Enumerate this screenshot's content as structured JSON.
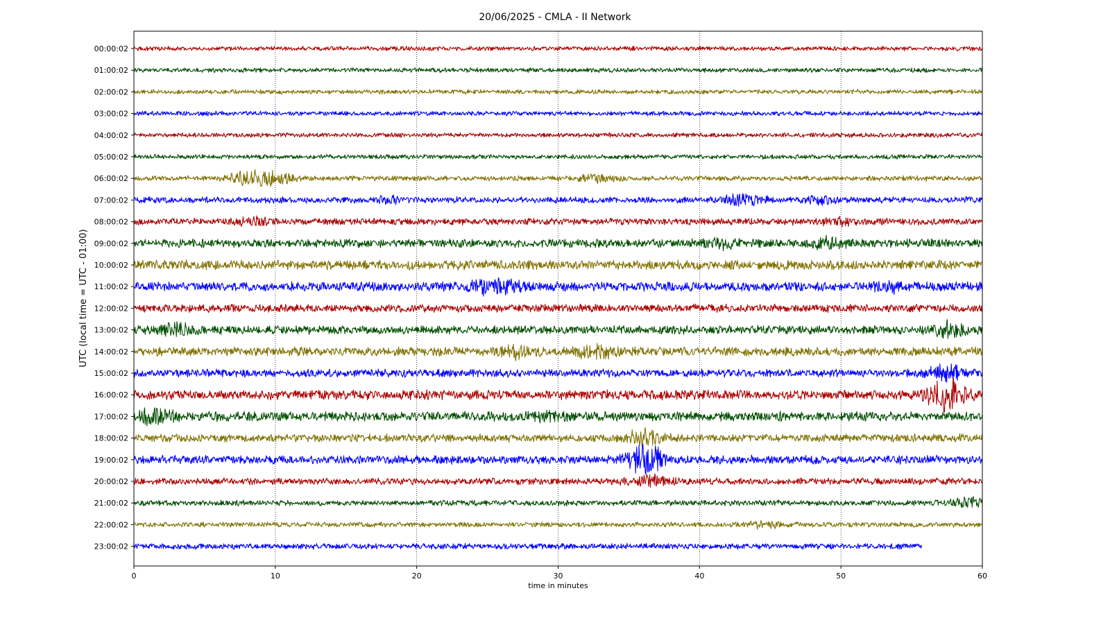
{
  "chart_data": {
    "type": "line",
    "title": "20/06/2025 - CMLA - II Network",
    "xlabel": "time in minutes",
    "ylabel": "UTC (local time = UTC - 01:00)",
    "xlim": [
      0,
      60
    ],
    "xticks": [
      "0",
      "10",
      "20",
      "30",
      "40",
      "50",
      "60"
    ],
    "grid": "vertical dotted lines at each x tick",
    "series_colors": [
      "#aa0000",
      "#004d00",
      "#807000",
      "#0000ff"
    ],
    "series": [
      {
        "name": "00:00:02",
        "color": "#aa0000",
        "end_minute": 60,
        "base_amplitude": 0.4,
        "events": []
      },
      {
        "name": "01:00:02",
        "color": "#004d00",
        "end_minute": 60,
        "base_amplitude": 0.4,
        "events": []
      },
      {
        "name": "02:00:02",
        "color": "#807000",
        "end_minute": 60,
        "base_amplitude": 0.4,
        "events": []
      },
      {
        "name": "03:00:02",
        "color": "#0000ff",
        "end_minute": 60,
        "base_amplitude": 0.4,
        "events": []
      },
      {
        "name": "04:00:02",
        "color": "#aa0000",
        "end_minute": 60,
        "base_amplitude": 0.4,
        "events": []
      },
      {
        "name": "05:00:02",
        "color": "#004d00",
        "end_minute": 60,
        "base_amplitude": 0.4,
        "events": []
      },
      {
        "name": "06:00:02",
        "color": "#807000",
        "end_minute": 60,
        "base_amplitude": 0.45,
        "events": [
          {
            "minute": 7.9,
            "amplitude": 0.8
          },
          {
            "minute": 9.8,
            "amplitude": 1.1
          },
          {
            "minute": 32.6,
            "amplitude": 0.5
          }
        ]
      },
      {
        "name": "07:00:02",
        "color": "#0000ff",
        "end_minute": 60,
        "base_amplitude": 0.55,
        "events": [
          {
            "minute": 18,
            "amplitude": 0.5
          },
          {
            "minute": 43.2,
            "amplitude": 0.9
          },
          {
            "minute": 48.5,
            "amplitude": 0.5
          }
        ]
      },
      {
        "name": "08:00:02",
        "color": "#aa0000",
        "end_minute": 60,
        "base_amplitude": 0.6,
        "events": [
          {
            "minute": 8.5,
            "amplitude": 0.4
          },
          {
            "minute": 50,
            "amplitude": 0.4
          }
        ]
      },
      {
        "name": "09:00:02",
        "color": "#004d00",
        "end_minute": 60,
        "base_amplitude": 0.75,
        "events": [
          {
            "minute": 41.5,
            "amplitude": 0.6
          },
          {
            "minute": 49,
            "amplitude": 0.6
          }
        ]
      },
      {
        "name": "10:00:02",
        "color": "#807000",
        "end_minute": 60,
        "base_amplitude": 0.85,
        "events": []
      },
      {
        "name": "11:00:02",
        "color": "#0000ff",
        "end_minute": 60,
        "base_amplitude": 0.85,
        "events": [
          {
            "minute": 24.5,
            "amplitude": 0.8
          },
          {
            "minute": 26.5,
            "amplitude": 0.8
          },
          {
            "minute": 53.5,
            "amplitude": 0.5
          }
        ]
      },
      {
        "name": "12:00:02",
        "color": "#aa0000",
        "end_minute": 60,
        "base_amplitude": 0.7,
        "events": []
      },
      {
        "name": "13:00:02",
        "color": "#004d00",
        "end_minute": 60,
        "base_amplitude": 0.75,
        "events": [
          {
            "minute": 2.9,
            "amplitude": 0.8
          },
          {
            "minute": 57.5,
            "amplitude": 1.0
          }
        ]
      },
      {
        "name": "14:00:02",
        "color": "#807000",
        "end_minute": 60,
        "base_amplitude": 0.8,
        "events": [
          {
            "minute": 27.5,
            "amplitude": 0.9
          },
          {
            "minute": 32.8,
            "amplitude": 1.0
          }
        ]
      },
      {
        "name": "15:00:02",
        "color": "#0000ff",
        "end_minute": 60,
        "base_amplitude": 0.7,
        "events": [
          {
            "minute": 57.5,
            "amplitude": 1.2
          }
        ]
      },
      {
        "name": "16:00:02",
        "color": "#aa0000",
        "end_minute": 60,
        "base_amplitude": 0.85,
        "events": [
          {
            "minute": 57.5,
            "amplitude": 2.8
          }
        ]
      },
      {
        "name": "17:00:02",
        "color": "#004d00",
        "end_minute": 60,
        "base_amplitude": 0.85,
        "events": [
          {
            "minute": 1.5,
            "amplitude": 0.9
          },
          {
            "minute": 29,
            "amplitude": 0.5
          }
        ]
      },
      {
        "name": "18:00:02",
        "color": "#807000",
        "end_minute": 60,
        "base_amplitude": 0.7,
        "events": [
          {
            "minute": 36.2,
            "amplitude": 1.5
          }
        ]
      },
      {
        "name": "19:00:02",
        "color": "#0000ff",
        "end_minute": 60,
        "base_amplitude": 0.75,
        "events": [
          {
            "minute": 36.2,
            "amplitude": 2.6
          }
        ]
      },
      {
        "name": "20:00:02",
        "color": "#aa0000",
        "end_minute": 60,
        "base_amplitude": 0.6,
        "events": [
          {
            "minute": 36.5,
            "amplitude": 0.8
          }
        ]
      },
      {
        "name": "21:00:02",
        "color": "#004d00",
        "end_minute": 60,
        "base_amplitude": 0.5,
        "events": [
          {
            "minute": 58.8,
            "amplitude": 0.8
          }
        ]
      },
      {
        "name": "22:00:02",
        "color": "#807000",
        "end_minute": 60,
        "base_amplitude": 0.45,
        "events": [
          {
            "minute": 44.5,
            "amplitude": 0.4
          }
        ]
      },
      {
        "name": "23:00:02",
        "color": "#0000ff",
        "end_minute": 55.7,
        "base_amplitude": 0.5,
        "events": []
      }
    ]
  }
}
